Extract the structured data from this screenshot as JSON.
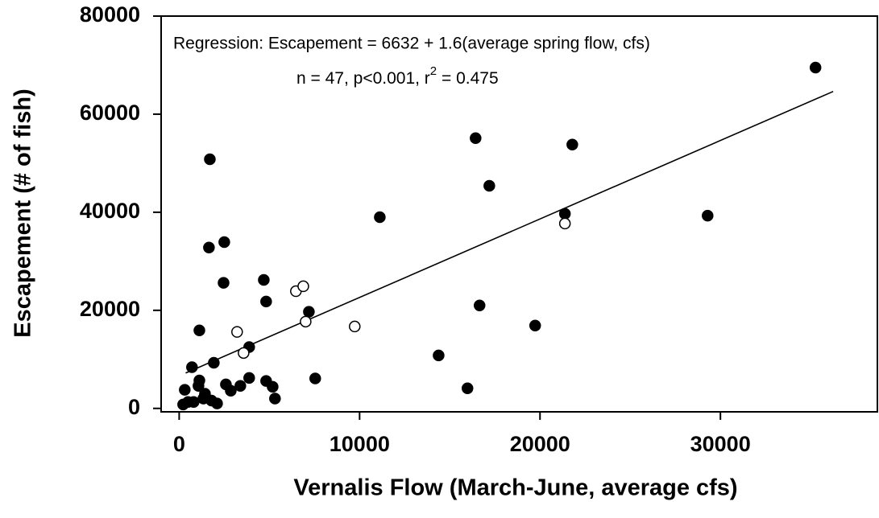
{
  "chart_data": {
    "type": "scatter",
    "xlabel": "Vernalis Flow (March-June, average cfs)",
    "ylabel": "Escapement (# of fish)",
    "annotations": [
      "Regression: Escapement = 6632 + 1.6(average spring flow, cfs)",
      "n = 47, p<0.001, r",
      "2",
      " = 0.475"
    ],
    "xlim": [
      -1000,
      38700
    ],
    "ylim": [
      -700,
      80000
    ],
    "xticks": [
      0,
      10000,
      20000,
      30000
    ],
    "yticks": [
      0,
      20000,
      40000,
      60000,
      80000
    ],
    "grid": false,
    "fit": {
      "intercept": 6632,
      "slope": 1.6,
      "x": [
        360,
        36250
      ],
      "color": "#000000"
    },
    "series": [
      {
        "color": "#000000",
        "facecolor": "#000000",
        "x": [
          35270,
          16430,
          21790,
          1700,
          17190,
          11120,
          21380,
          29290,
          2500,
          1650,
          4690,
          2460,
          4820,
          7190,
          16650,
          19730,
          1120,
          3880,
          14380,
          710,
          1920,
          1120,
          1070,
          2590,
          3390,
          3880,
          4820,
          5180,
          7540,
          15980,
          310,
          1430,
          2860,
          1340,
          1790,
          5310,
          490,
          800,
          2100,
          220
        ],
        "values": [
          69500,
          55100,
          53800,
          50800,
          45400,
          39000,
          39700,
          39300,
          33900,
          32800,
          26200,
          25600,
          21800,
          19700,
          21000,
          16900,
          15900,
          12500,
          10800,
          8400,
          9300,
          5700,
          4600,
          4900,
          4600,
          6200,
          5600,
          4400,
          6100,
          4100,
          3800,
          3000,
          3600,
          2000,
          1600,
          2000,
          1300,
          1300,
          1000,
          800
        ]
      },
      {
        "color": "#000000",
        "facecolor": "#ffffff",
        "x": [
          3210,
          3570,
          6470,
          6880,
          7010,
          9730,
          21380
        ],
        "values": [
          15600,
          11300,
          23900,
          24900,
          17700,
          16700,
          37700
        ]
      }
    ]
  }
}
